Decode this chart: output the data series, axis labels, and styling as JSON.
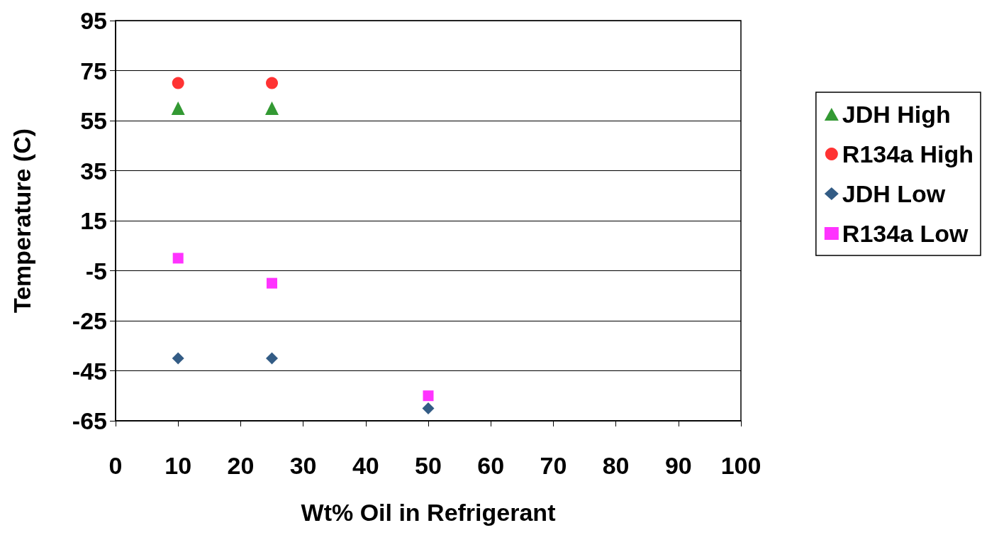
{
  "chart_data": {
    "type": "scatter",
    "xlabel": "Wt% Oil in Refrigerant",
    "ylabel": "Temperature (C)",
    "x": [
      10,
      25,
      50
    ],
    "series": [
      {
        "name": "JDH High",
        "color": "#008000",
        "marker": "triangle",
        "values": [
          60,
          60,
          null
        ]
      },
      {
        "name": "R134a High",
        "color": "#ff0000",
        "marker": "circle",
        "values": [
          70,
          70,
          null
        ]
      },
      {
        "name": "JDH Low",
        "color": "#003366",
        "marker": "diamond",
        "values": [
          -40,
          -40,
          -60
        ]
      },
      {
        "name": "R134a Low",
        "color": "#ff00ff",
        "marker": "square",
        "values": [
          0,
          -10,
          -55
        ]
      }
    ],
    "xlim": [
      0,
      100
    ],
    "xticks": [
      0,
      10,
      20,
      30,
      40,
      50,
      60,
      70,
      80,
      90,
      100
    ],
    "ylim": [
      -65,
      95
    ],
    "yticks": [
      -65,
      -45,
      -25,
      -5,
      15,
      35,
      55,
      75,
      95
    ],
    "grid": "y",
    "legend": "right"
  }
}
